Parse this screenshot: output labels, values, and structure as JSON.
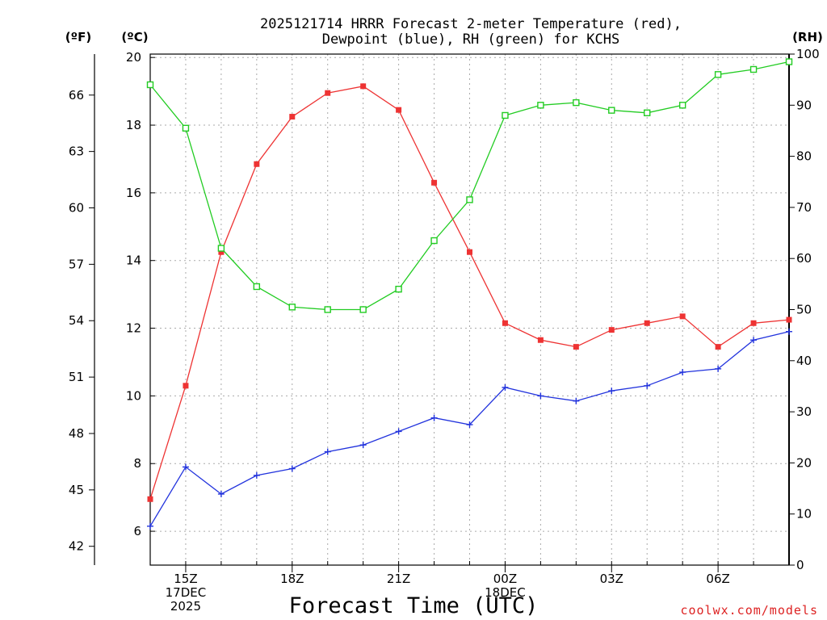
{
  "chart_data": {
    "type": "line",
    "title_line1": "2025121714 HRRR Forecast 2-meter Temperature (red),",
    "title_line2": "Dewpoint (blue), RH (green) for KCHS",
    "xlabel": "Forecast Time (UTC)",
    "credit": "coolwx.com/models",
    "unit_f": "(ºF)",
    "unit_c": "(ºC)",
    "unit_rh": "(RH)",
    "x_hours": [
      14,
      15,
      16,
      17,
      18,
      19,
      20,
      21,
      22,
      23,
      24,
      25,
      26,
      27,
      28,
      29,
      30,
      31,
      32
    ],
    "x_ticks": [
      {
        "hour": 15,
        "lines": [
          "15Z",
          "17DEC",
          "2025"
        ]
      },
      {
        "hour": 18,
        "lines": [
          "18Z"
        ]
      },
      {
        "hour": 21,
        "lines": [
          "21Z"
        ]
      },
      {
        "hour": 24,
        "lines": [
          "00Z",
          "18DEC"
        ]
      },
      {
        "hour": 27,
        "lines": [
          "03Z"
        ]
      },
      {
        "hour": 30,
        "lines": [
          "06Z"
        ]
      }
    ],
    "celsius_axis": {
      "min": 5,
      "max": 20.1,
      "ticks": [
        6,
        8,
        10,
        12,
        14,
        16,
        18,
        20
      ]
    },
    "fahrenheit_ticks": [
      42,
      45,
      48,
      51,
      54,
      57,
      60,
      63,
      66
    ],
    "rh_axis": {
      "min": 0,
      "max": 100,
      "ticks": [
        0,
        10,
        20,
        30,
        40,
        50,
        60,
        70,
        80,
        90,
        100
      ]
    },
    "series": [
      {
        "name": "Temperature",
        "axis": "celsius",
        "color": "#ee3333",
        "marker": "filled-square",
        "values": [
          6.95,
          10.3,
          14.25,
          16.85,
          18.25,
          18.95,
          19.15,
          18.45,
          16.3,
          14.25,
          12.15,
          11.65,
          11.45,
          11.95,
          12.15,
          12.35,
          11.45,
          12.15,
          12.25
        ]
      },
      {
        "name": "Dewpoint",
        "axis": "celsius",
        "color": "#2233dd",
        "marker": "plus",
        "values": [
          6.15,
          7.9,
          7.1,
          7.65,
          7.85,
          8.35,
          8.55,
          8.95,
          9.35,
          9.15,
          10.25,
          10.0,
          9.85,
          10.15,
          10.3,
          10.7,
          10.8,
          11.65,
          11.9
        ]
      },
      {
        "name": "RH",
        "axis": "rh",
        "color": "#22cc22",
        "marker": "open-square",
        "values": [
          94,
          85.5,
          62,
          54.5,
          50.5,
          50,
          50,
          54,
          63.5,
          71.5,
          88,
          90,
          90.5,
          89,
          88.5,
          90,
          96,
          97,
          98.5
        ]
      }
    ]
  }
}
